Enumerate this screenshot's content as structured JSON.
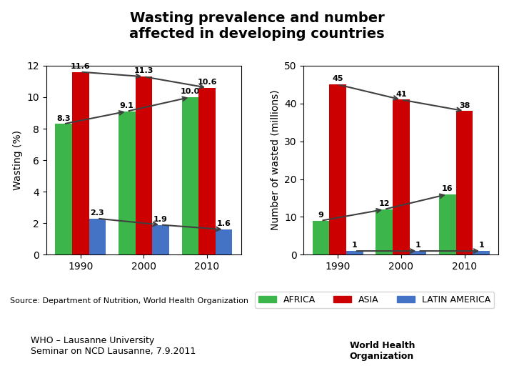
{
  "title": "Wasting prevalence and number\naffected in developing countries",
  "legend": "lower right",
  "annotations": [
    "Source: Department of Nutrition, World Health Organization",
    "WHO – Lausanne University\nSeminar on NCD Lausanne, 7.9.2011",
    "World Health\nOrganization"
  ],
  "chart_data": [
    {
      "type": "bar",
      "categories": [
        "1990",
        "2000",
        "2010"
      ],
      "ylabel": "Wasting (%)",
      "ylim": [
        0,
        12
      ],
      "yticks": [
        0,
        2,
        4,
        6,
        8,
        10,
        12
      ],
      "data_labels": true,
      "series": [
        {
          "name": "AFRICA",
          "color": "#3cb54a",
          "values": [
            8.3,
            9.1,
            10.0
          ]
        },
        {
          "name": "ASIA",
          "color": "#cc0000",
          "values": [
            11.6,
            11.3,
            10.6
          ]
        },
        {
          "name": "LATIN AMERICA",
          "color": "#4472c4",
          "values": [
            2.3,
            1.9,
            1.6
          ]
        }
      ]
    },
    {
      "type": "bar",
      "categories": [
        "1990",
        "2000",
        "2010"
      ],
      "ylabel": "Number of wasted (millions)",
      "ylim": [
        0,
        50
      ],
      "yticks": [
        0,
        10,
        20,
        30,
        40,
        50
      ],
      "data_labels": true,
      "series": [
        {
          "name": "AFRICA",
          "color": "#3cb54a",
          "values": [
            9,
            12,
            16
          ]
        },
        {
          "name": "ASIA",
          "color": "#cc0000",
          "values": [
            45,
            41,
            38
          ]
        },
        {
          "name": "LATIN AMERICA",
          "color": "#4472c4",
          "values": [
            1,
            1,
            1
          ]
        }
      ]
    }
  ]
}
